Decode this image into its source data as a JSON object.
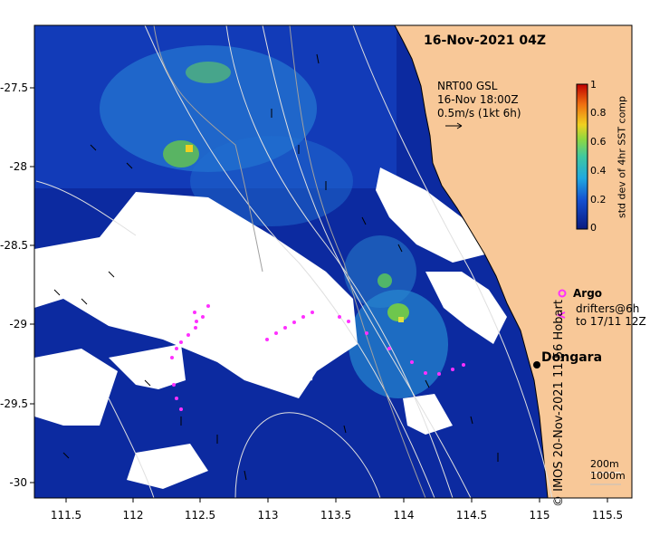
{
  "header": {
    "date": "16-Nov-2021 04Z"
  },
  "current_note": {
    "line1": "NRT00 GSL",
    "line2": "16-Nov 18:00Z",
    "line3": "0.5m/s (1kt 6h)"
  },
  "colorbar": {
    "title": "std dev of 4hr SST comp",
    "ticks": [
      "1",
      "0.8",
      "0.6",
      "0.4",
      "0.2",
      "0"
    ],
    "colors": [
      "#0a1a80",
      "#1550d0",
      "#20a8e0",
      "#40c8a0",
      "#8ed840",
      "#f0d020",
      "#f07010",
      "#c00000"
    ]
  },
  "axes": {
    "lon_ticks": [
      "111.5",
      "112",
      "112.5",
      "113",
      "113.5",
      "114",
      "114.5",
      "115",
      "115.5"
    ],
    "lat_ticks": [
      "-27.5",
      "-28",
      "-28.5",
      "-29",
      "-29.5",
      "-30"
    ]
  },
  "legend": {
    "argo": "Argo",
    "drifters_line1": "drifters@6h",
    "drifters_line2": "to 17/11 12Z"
  },
  "place": {
    "name": "Dongara"
  },
  "isobaths": {
    "line1": "200m",
    "line2": "1000m"
  },
  "credit": "© IMOS 20-Nov-2021 11:56 Hobart",
  "colors": {
    "land": "#f8c898",
    "ocean_deep": "#0a1a90",
    "cloud": "#ffffff",
    "drifter": "#ff30ff",
    "isobath": "#e0e0e0"
  }
}
